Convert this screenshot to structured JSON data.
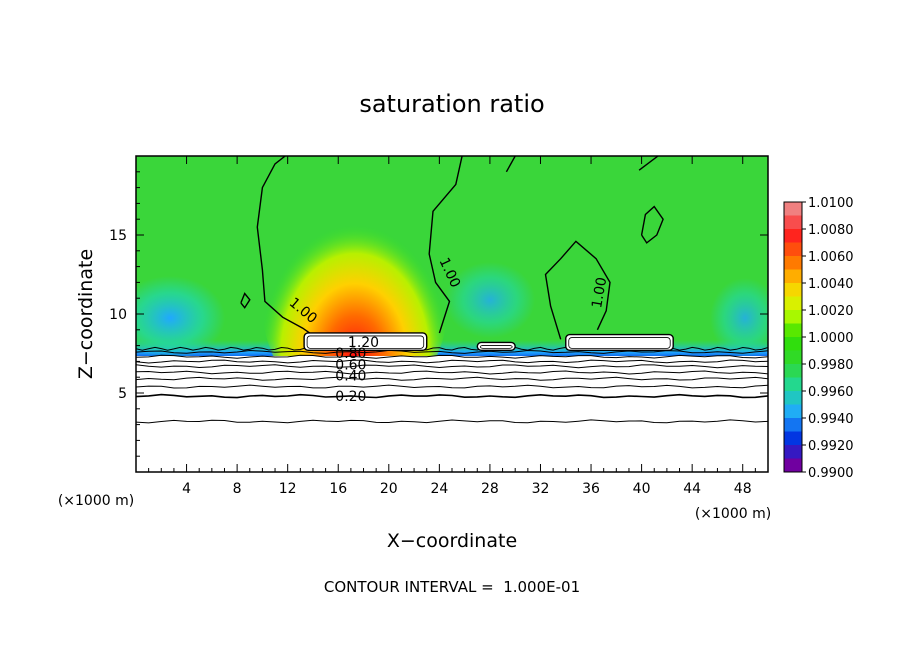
{
  "chart_data": {
    "type": "heatmap",
    "title": "saturation ratio",
    "xlabel": "X−coordinate",
    "ylabel": "Z−coordinate",
    "x_unit": "(×1000 m)",
    "x_unit_right": "(×1000 m)",
    "xlim": [
      0,
      50
    ],
    "ylim": [
      0,
      20
    ],
    "x_ticks": [
      4,
      8,
      12,
      16,
      20,
      24,
      28,
      32,
      36,
      40,
      44,
      48
    ],
    "y_ticks": [
      5,
      10,
      15
    ],
    "colorbar": {
      "ticks": [
        "1.0100",
        "1.0080",
        "1.0060",
        "1.0040",
        "1.0020",
        "1.0000",
        "0.9980",
        "0.9960",
        "0.9940",
        "0.9920",
        "0.9900"
      ],
      "min": 0.99,
      "max": 1.01,
      "colors": [
        "#f08080",
        "#ff2020",
        "#ff7000",
        "#ffd000",
        "#c8ff00",
        "#30e000",
        "#30d830",
        "#20d8a0",
        "#20a8ff",
        "#0030e0",
        "#7000a0"
      ]
    },
    "contour_labels": [
      {
        "text": "1.00",
        "x": 13.0,
        "y": 10.0,
        "rotation": 40
      },
      {
        "text": "1.00",
        "x": 24.5,
        "y": 12.5,
        "rotation": 65
      },
      {
        "text": "1.00",
        "x": 37.0,
        "y": 11.3,
        "rotation": -80
      },
      {
        "text": "1.20",
        "x": 18.0,
        "y": 7.9,
        "rotation": 0
      },
      {
        "text": "0.80",
        "x": 17.0,
        "y": 7.2,
        "rotation": 0
      },
      {
        "text": "0.60",
        "x": 17.0,
        "y": 6.5,
        "rotation": 0
      },
      {
        "text": "0.40",
        "x": 17.0,
        "y": 5.8,
        "rotation": 0
      },
      {
        "text": "0.20",
        "x": 17.0,
        "y": 4.5,
        "rotation": 0
      }
    ],
    "low_contours_z": [
      3.2,
      4.8,
      5.4,
      5.9,
      6.3,
      6.7,
      7.0,
      7.3,
      7.6
    ],
    "cloud_regions": [
      {
        "x0": 13.3,
        "x1": 23.0,
        "z0": 7.7,
        "z1": 8.8
      },
      {
        "x0": 27.0,
        "x1": 30.0,
        "z0": 7.7,
        "z1": 8.2
      },
      {
        "x0": 34.0,
        "x1": 42.5,
        "z0": 7.7,
        "z1": 8.7
      }
    ],
    "contour_interval": "CONTOUR INTERVAL =  1.000E-01"
  }
}
